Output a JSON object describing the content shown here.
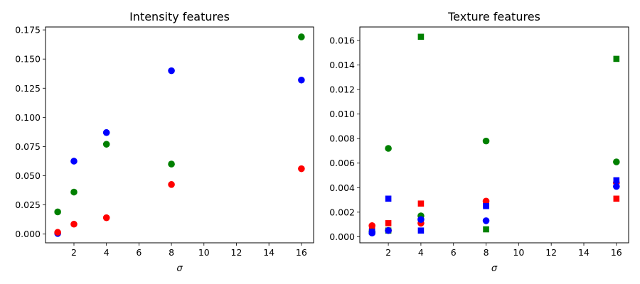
{
  "chart_data": [
    {
      "type": "scatter",
      "title": "Intensity features",
      "xlabel": "σ",
      "ylabel": "",
      "xlim": [
        0.25,
        16.75
      ],
      "ylim": [
        -0.0075,
        0.1775
      ],
      "xticks": [
        2,
        4,
        6,
        8,
        10,
        12,
        14,
        16
      ],
      "yticks": [
        0.0,
        0.025,
        0.05,
        0.075,
        0.1,
        0.125,
        0.15,
        0.175
      ],
      "ytick_labels": [
        "0.000",
        "0.025",
        "0.050",
        "0.075",
        "0.100",
        "0.125",
        "0.150",
        "0.175"
      ],
      "grid": false,
      "series": [
        {
          "color": "#0000ff",
          "marker": "circle",
          "x": [
            1,
            2,
            4,
            8,
            16
          ],
          "y": [
            0.0005,
            0.0625,
            0.087,
            0.14,
            0.132
          ]
        },
        {
          "color": "#008000",
          "marker": "circle",
          "x": [
            1,
            2,
            4,
            8,
            16
          ],
          "y": [
            0.019,
            0.036,
            0.077,
            0.06,
            0.169
          ]
        },
        {
          "color": "#ff0000",
          "marker": "circle",
          "x": [
            1,
            2,
            4,
            8,
            16
          ],
          "y": [
            0.0015,
            0.0085,
            0.014,
            0.0425,
            0.056
          ]
        }
      ]
    },
    {
      "type": "scatter",
      "title": "Texture features",
      "xlabel": "σ",
      "ylabel": "",
      "xlim": [
        0.25,
        16.75
      ],
      "ylim": [
        -0.0005,
        0.0171
      ],
      "xticks": [
        2,
        4,
        6,
        8,
        10,
        12,
        14,
        16
      ],
      "yticks": [
        0.0,
        0.002,
        0.004,
        0.006,
        0.008,
        0.01,
        0.012,
        0.014,
        0.016
      ],
      "ytick_labels": [
        "0.000",
        "0.002",
        "0.004",
        "0.006",
        "0.008",
        "0.010",
        "0.012",
        "0.014",
        "0.016"
      ],
      "grid": false,
      "series": [
        {
          "color": "#ff0000",
          "marker": "circle",
          "x": [
            1,
            2,
            4,
            8,
            16
          ],
          "y": [
            0.0009,
            0.0005,
            0.0011,
            0.0029,
            0.0044
          ]
        },
        {
          "color": "#ff0000",
          "marker": "square",
          "x": [
            1,
            2,
            4,
            8,
            16
          ],
          "y": [
            0.0006,
            0.0011,
            0.0027,
            0.0026,
            0.0031
          ]
        },
        {
          "color": "#008000",
          "marker": "circle",
          "x": [
            1,
            2,
            4,
            8,
            16
          ],
          "y": [
            0.0004,
            0.0072,
            0.0017,
            0.0078,
            0.0061
          ]
        },
        {
          "color": "#008000",
          "marker": "square",
          "x": [
            1,
            2,
            4,
            8,
            16
          ],
          "y": [
            0.0004,
            0.0005,
            0.0163,
            0.0006,
            0.0145
          ]
        },
        {
          "color": "#0000ff",
          "marker": "circle",
          "x": [
            1,
            2,
            4,
            8,
            16
          ],
          "y": [
            0.0003,
            0.0005,
            0.0014,
            0.0013,
            0.0041
          ]
        },
        {
          "color": "#0000ff",
          "marker": "square",
          "x": [
            1,
            2,
            4,
            8,
            16
          ],
          "y": [
            0.0004,
            0.0031,
            0.0005,
            0.0025,
            0.0046
          ]
        }
      ]
    }
  ]
}
